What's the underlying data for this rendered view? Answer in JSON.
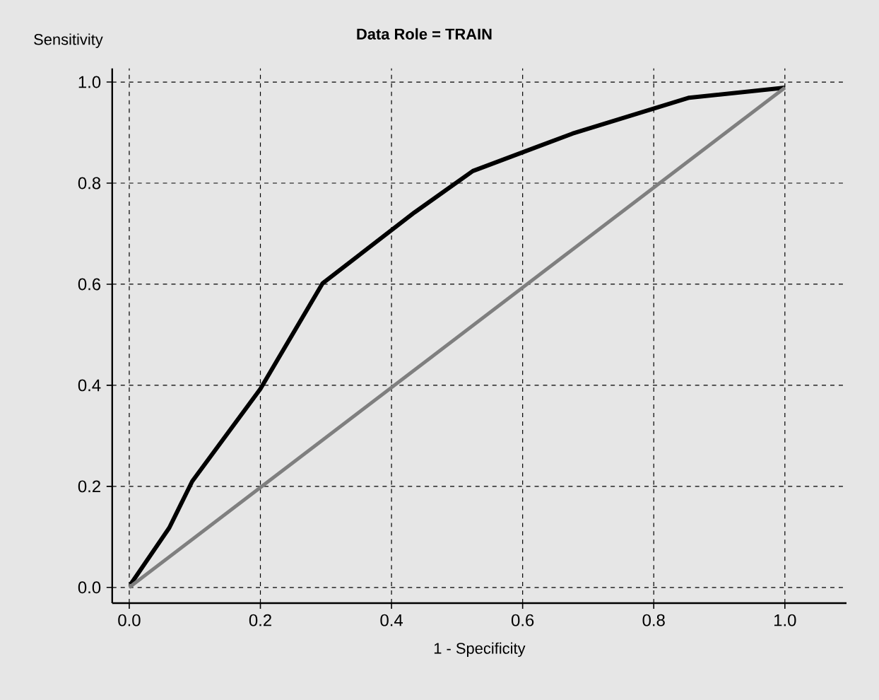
{
  "chart_data": {
    "type": "line",
    "title": "Data Role = TRAIN",
    "xlabel": "1 - Specificity",
    "ylabel": "Sensitivity",
    "xlim": [
      -0.026,
      1.094
    ],
    "ylim": [
      -0.031,
      1.027
    ],
    "xticks": [
      {
        "value": 0,
        "label": "0.0"
      },
      {
        "value": 0.2,
        "label": "0.2"
      },
      {
        "value": 0.4,
        "label": "0.4"
      },
      {
        "value": 0.6,
        "label": "0.6"
      },
      {
        "value": 0.8,
        "label": "0.8"
      },
      {
        "value": 1,
        "label": "1.0"
      }
    ],
    "yticks": [
      {
        "value": 0,
        "label": "0.0"
      },
      {
        "value": 0.2,
        "label": "0.2"
      },
      {
        "value": 0.4,
        "label": "0.4"
      },
      {
        "value": 0.6,
        "label": "0.6"
      },
      {
        "value": 0.8,
        "label": "0.8"
      },
      {
        "value": 1,
        "label": "1.0"
      }
    ],
    "grid": true,
    "line_style": "solid",
    "series": [
      {
        "color": "#000000",
        "x": [
          0.002,
          0.061,
          0.096,
          0.2,
          0.295,
          0.435,
          0.524,
          0.676,
          0.854,
          1.0
        ],
        "values": [
          0.006,
          0.118,
          0.21,
          0.393,
          0.602,
          0.742,
          0.824,
          0.898,
          0.969,
          0.989
        ]
      },
      {
        "color": "#7f7f7f",
        "x": [
          0.0,
          1.0
        ],
        "values": [
          0.0,
          0.989
        ]
      }
    ]
  }
}
